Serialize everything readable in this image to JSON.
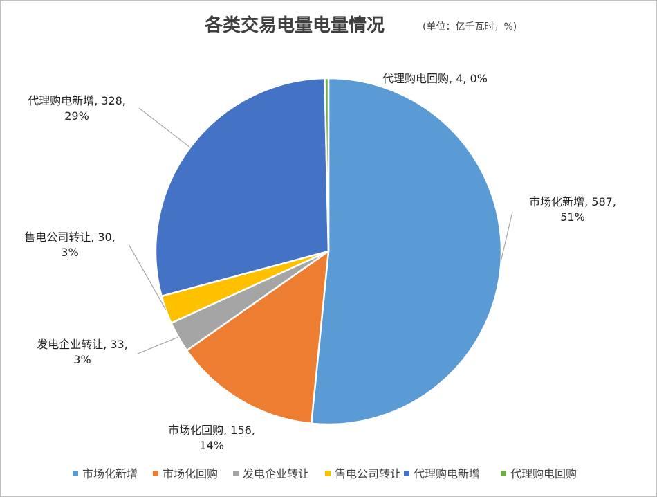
{
  "chart_data": {
    "type": "pie",
    "title": "各类交易电量电量情况",
    "subtitle": "(单位：亿千瓦时，%)",
    "categories": [
      "市场化新增",
      "市场化回购",
      "发电企业转让",
      "售电公司转让",
      "代理购电新增",
      "代理购电回购"
    ],
    "values": [
      587,
      156,
      33,
      30,
      328,
      4
    ],
    "percent_labels": [
      "51%",
      "14%",
      "3%",
      "3%",
      "29%",
      "0%"
    ],
    "colors": [
      "#5B9BD5",
      "#ED7D31",
      "#A5A5A5",
      "#FFC000",
      "#4472C4",
      "#70AD47"
    ],
    "data_labels": [
      [
        "市场化新增, 587,",
        "51%"
      ],
      [
        "市场化回购, 156,",
        "14%"
      ],
      [
        "发电企业转让, 33,",
        "3%"
      ],
      [
        "售电公司转让, 30,",
        "3%"
      ],
      [
        "代理购电新增, 328,",
        "29%"
      ],
      [
        "代理购电回购, 4, 0%"
      ]
    ],
    "legend_position": "bottom"
  }
}
